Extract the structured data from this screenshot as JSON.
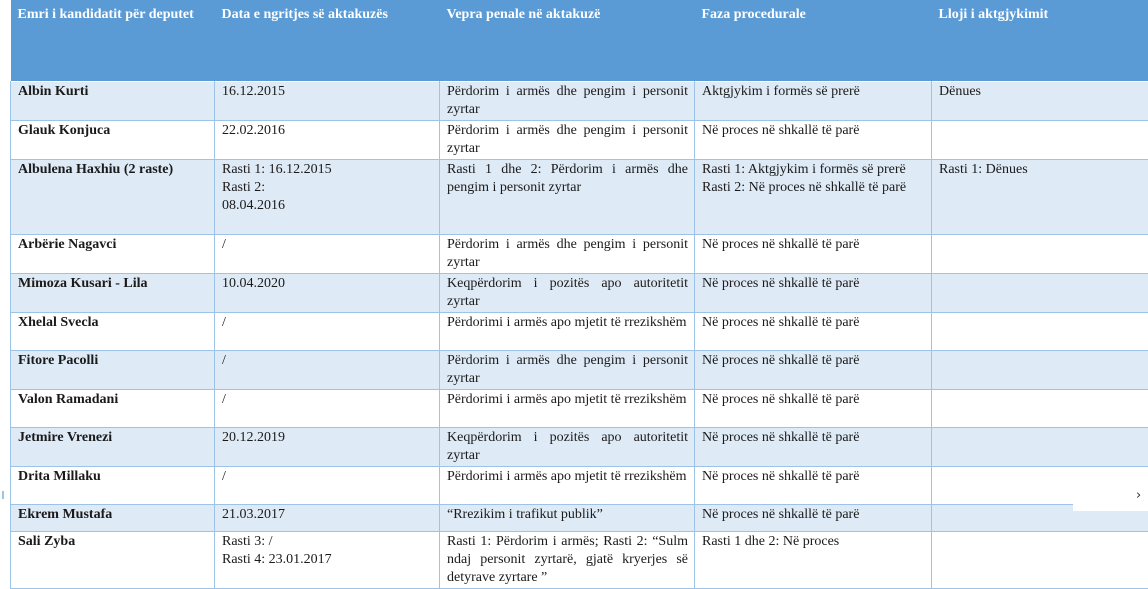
{
  "table": {
    "headers": [
      "Emri i kandidatit për deputet",
      "Data e ngritjes së aktakuzës",
      "Vepra penale në aktakuzë",
      "Faza procedurale",
      "Lloji i aktgjykimit"
    ],
    "rows": [
      {
        "name": "Albin Kurti",
        "date": [
          "16.12.2015"
        ],
        "crime": [
          "Përdorim i armës dhe pengim i personit zyrtar"
        ],
        "phase": [
          "Aktgjykim i formës së prerë"
        ],
        "verdict": [
          "Dënues"
        ]
      },
      {
        "name": "Glauk Konjuca",
        "date": [
          "22.02.2016"
        ],
        "crime": [
          "Përdorim i armës dhe pengim i personit zyrtar"
        ],
        "phase": [
          "Në proces në shkallë të parë"
        ],
        "verdict": [
          ""
        ]
      },
      {
        "name": "Albulena Haxhiu (2 raste)",
        "date": [
          "Rasti 1: 16.12.2015",
          "Rasti 2:",
          "08.04.2016"
        ],
        "crime": [
          "Rasti 1 dhe 2: Përdorim i armës dhe pengim i personit zyrtar"
        ],
        "phase": [
          "Rasti 1: Aktgjykim i formës së prerë",
          "Rasti 2: Në proces në shkallë të parë"
        ],
        "verdict": [
          "Rasti 1: Dënues"
        ]
      },
      {
        "name": "Arbërie Nagavci",
        "date": [
          "/"
        ],
        "crime": [
          "Përdorim i armës dhe pengim i personit zyrtar"
        ],
        "phase": [
          "Në proces në shkallë të parë"
        ],
        "verdict": [
          ""
        ]
      },
      {
        "name": "Mimoza Kusari - Lila",
        "date": [
          "10.04.2020"
        ],
        "crime": [
          "Keqpërdorim i pozitës apo autoritetit zyrtar"
        ],
        "phase": [
          "Në proces në shkallë të parë"
        ],
        "verdict": [
          ""
        ]
      },
      {
        "name": "Xhelal Svecla",
        "date": [
          "/"
        ],
        "crime": [
          "Përdorimi i armës apo mjetit të rrezikshëm"
        ],
        "phase": [
          "Në proces në shkallë të parë"
        ],
        "verdict": [
          ""
        ]
      },
      {
        "name": "Fitore Pacolli",
        "date": [
          "/"
        ],
        "crime": [
          "Përdorim i armës dhe pengim i personit zyrtar"
        ],
        "phase": [
          "Në proces në shkallë të parë"
        ],
        "verdict": [
          ""
        ]
      },
      {
        "name": "Valon Ramadani",
        "date": [
          "/"
        ],
        "crime": [
          "Përdorimi i armës apo mjetit të rrezikshëm"
        ],
        "phase": [
          "Në proces në shkallë të parë"
        ],
        "verdict": [
          ""
        ]
      },
      {
        "name": "Jetmire Vrenezi",
        "date": [
          "20.12.2019"
        ],
        "crime": [
          "Keqpërdorim i pozitës apo autoritetit zyrtar"
        ],
        "phase": [
          "Në proces në shkallë të parë"
        ],
        "verdict": [
          ""
        ]
      },
      {
        "name": "Drita Millaku",
        "date": [
          "/"
        ],
        "crime": [
          "Përdorimi i armës apo mjetit të rrezikshëm"
        ],
        "phase": [
          "Në proces në shkallë të parë"
        ],
        "verdict": [
          ""
        ]
      },
      {
        "name": "Ekrem Mustafa",
        "date": [
          "21.03.2017"
        ],
        "crime": [
          "“Rrezikim i trafikut publik”"
        ],
        "phase": [
          "Në proces në shkallë të parë"
        ],
        "verdict": [
          ""
        ]
      },
      {
        "name": "Sali Zyba",
        "date": [
          "Rasti 3: /",
          "Rasti 4: 23.01.2017"
        ],
        "crime": [
          "Rasti 1: Përdorim i armës; Rasti 2: “Sulm ndaj personit zyrtarë, gjatë kryerjes së detyrave zyrtare ”"
        ],
        "phase": [
          "Rasti 1 dhe 2: Në proces"
        ],
        "verdict": [
          ""
        ]
      }
    ]
  },
  "scroll": {
    "chevron": "›",
    "icon": "chevron-right-icon"
  }
}
